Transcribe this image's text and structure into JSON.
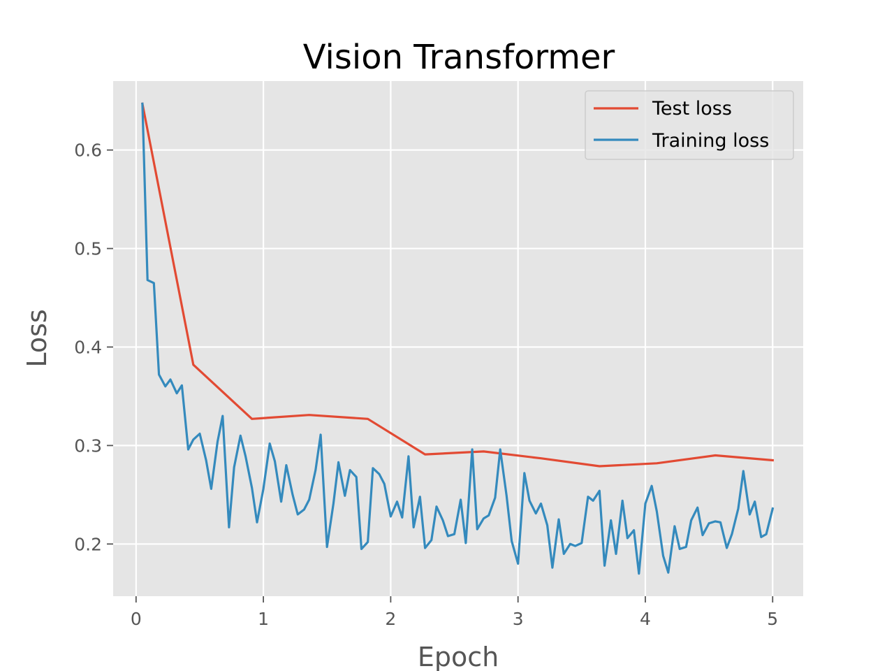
{
  "chart_data": {
    "type": "line",
    "title": "Vision Transformer",
    "xlabel": "Epoch",
    "ylabel": "Loss",
    "xlim": [
      -0.18,
      5.24
    ],
    "ylim": [
      0.147,
      0.67
    ],
    "xticks": [
      0,
      1,
      2,
      3,
      4,
      5
    ],
    "yticks": [
      0.2,
      0.3,
      0.4,
      0.5,
      0.6
    ],
    "xtick_labels": [
      "0",
      "1",
      "2",
      "3",
      "4",
      "5"
    ],
    "ytick_labels": [
      "0.2",
      "0.3",
      "0.4",
      "0.5",
      "0.6"
    ],
    "grid": true,
    "legend": {
      "position": "top-right"
    },
    "series": [
      {
        "name": "Test loss",
        "color": "#E24A33",
        "x": [
          0.05,
          0.45,
          0.91,
          1.36,
          1.82,
          2.27,
          2.73,
          3.18,
          3.64,
          4.09,
          4.55,
          5.0
        ],
        "y": [
          0.647,
          0.382,
          0.327,
          0.331,
          0.327,
          0.291,
          0.294,
          0.287,
          0.279,
          0.282,
          0.29,
          0.285
        ]
      },
      {
        "name": "Training loss",
        "color": "#348ABD",
        "x": [
          0.05,
          0.09,
          0.14,
          0.18,
          0.23,
          0.27,
          0.32,
          0.36,
          0.41,
          0.45,
          0.5,
          0.55,
          0.59,
          0.64,
          0.68,
          0.73,
          0.77,
          0.82,
          0.86,
          0.91,
          0.95,
          1.0,
          1.05,
          1.09,
          1.14,
          1.18,
          1.23,
          1.27,
          1.32,
          1.36,
          1.41,
          1.45,
          1.5,
          1.55,
          1.59,
          1.64,
          1.68,
          1.73,
          1.77,
          1.82,
          1.86,
          1.91,
          1.95,
          2.0,
          2.05,
          2.09,
          2.14,
          2.18,
          2.23,
          2.27,
          2.32,
          2.36,
          2.41,
          2.45,
          2.5,
          2.55,
          2.59,
          2.64,
          2.68,
          2.73,
          2.77,
          2.82,
          2.86,
          2.91,
          2.95,
          3.0,
          3.05,
          3.09,
          3.14,
          3.18,
          3.23,
          3.27,
          3.32,
          3.36,
          3.41,
          3.45,
          3.5,
          3.55,
          3.59,
          3.64,
          3.68,
          3.73,
          3.77,
          3.82,
          3.86,
          3.91,
          3.95,
          4.0,
          4.05,
          4.09,
          4.14,
          4.18,
          4.23,
          4.27,
          4.32,
          4.36,
          4.41,
          4.45,
          4.5,
          4.55,
          4.59,
          4.64,
          4.68,
          4.73,
          4.77,
          4.82,
          4.86,
          4.91,
          4.95,
          5.0
        ],
        "y": [
          0.647,
          0.468,
          0.465,
          0.372,
          0.36,
          0.367,
          0.353,
          0.361,
          0.296,
          0.306,
          0.312,
          0.285,
          0.256,
          0.304,
          0.33,
          0.217,
          0.278,
          0.31,
          0.289,
          0.257,
          0.222,
          0.256,
          0.302,
          0.284,
          0.243,
          0.28,
          0.25,
          0.23,
          0.235,
          0.245,
          0.275,
          0.311,
          0.197,
          0.241,
          0.283,
          0.249,
          0.275,
          0.268,
          0.195,
          0.202,
          0.277,
          0.271,
          0.261,
          0.228,
          0.243,
          0.227,
          0.289,
          0.217,
          0.248,
          0.196,
          0.204,
          0.238,
          0.224,
          0.208,
          0.21,
          0.245,
          0.201,
          0.296,
          0.215,
          0.226,
          0.229,
          0.247,
          0.296,
          0.249,
          0.203,
          0.18,
          0.272,
          0.244,
          0.231,
          0.241,
          0.219,
          0.176,
          0.225,
          0.19,
          0.2,
          0.198,
          0.201,
          0.248,
          0.244,
          0.254,
          0.178,
          0.224,
          0.19,
          0.244,
          0.206,
          0.214,
          0.17,
          0.241,
          0.259,
          0.233,
          0.188,
          0.171,
          0.218,
          0.195,
          0.197,
          0.224,
          0.237,
          0.209,
          0.221,
          0.223,
          0.222,
          0.196,
          0.21,
          0.236,
          0.274,
          0.23,
          0.243,
          0.207,
          0.21,
          0.236
        ]
      }
    ]
  }
}
